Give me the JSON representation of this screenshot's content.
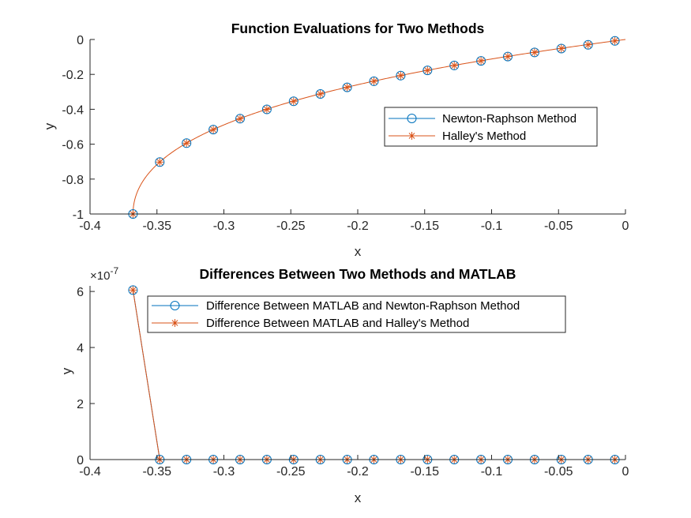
{
  "colors": {
    "series1": "#0072BD",
    "series2": "#D95319",
    "axis": "#262626",
    "text": "#262626"
  },
  "chart_data": [
    {
      "type": "line",
      "title": "Function Evaluations for Two Methods",
      "xlabel": "x",
      "ylabel": "y",
      "xlim": [
        -0.4,
        0
      ],
      "ylim": [
        -1,
        0
      ],
      "xticks": [
        -0.4,
        -0.35,
        -0.3,
        -0.25,
        -0.2,
        -0.15,
        -0.1,
        -0.05,
        0
      ],
      "xtick_labels": [
        "-0.4",
        "-0.35",
        "-0.3",
        "-0.25",
        "-0.2",
        "-0.15",
        "-0.1",
        "-0.05",
        "0"
      ],
      "yticks": [
        -1,
        -0.8,
        -0.6,
        -0.4,
        -0.2,
        0
      ],
      "ytick_labels": [
        "-1",
        "-0.8",
        "-0.6",
        "-0.4",
        "-0.2",
        "0"
      ],
      "legend_position": "upper-right",
      "grid": false,
      "x": [
        -0.3679,
        -0.3479,
        -0.3279,
        -0.3079,
        -0.2879,
        -0.2679,
        -0.2479,
        -0.2279,
        -0.2079,
        -0.1879,
        -0.1679,
        -0.1479,
        -0.1279,
        -0.1079,
        -0.0879,
        -0.0679,
        -0.0479,
        -0.0279,
        -0.0079
      ],
      "series": [
        {
          "name": "Newton-Raphson Method",
          "marker": "circle",
          "color": "#0072BD",
          "values": [
            -1.0,
            -0.7026,
            -0.5941,
            -0.5165,
            -0.4539,
            -0.4007,
            -0.3541,
            -0.3123,
            -0.2743,
            -0.2394,
            -0.2071,
            -0.1771,
            -0.149,
            -0.1226,
            -0.0977,
            -0.0741,
            -0.0518,
            -0.0303,
            -0.008
          ]
        },
        {
          "name": "Halley's Method",
          "marker": "asterisk",
          "color": "#D95319",
          "values": [
            -1.0,
            -0.7026,
            -0.5941,
            -0.5165,
            -0.4539,
            -0.4007,
            -0.3541,
            -0.3123,
            -0.2743,
            -0.2394,
            -0.2071,
            -0.1771,
            -0.149,
            -0.1226,
            -0.0977,
            -0.0741,
            -0.0518,
            -0.0303,
            -0.008
          ]
        }
      ]
    },
    {
      "type": "line",
      "title": "Differences Between Two Methods and MATLAB",
      "xlabel": "x",
      "ylabel": "y",
      "y_exponent_base": "×10",
      "y_exponent_power": "-7",
      "xlim": [
        -0.4,
        0
      ],
      "ylim": [
        0,
        6.2
      ],
      "xticks": [
        -0.4,
        -0.35,
        -0.3,
        -0.25,
        -0.2,
        -0.15,
        -0.1,
        -0.05,
        0
      ],
      "xtick_labels": [
        "-0.4",
        "-0.35",
        "-0.3",
        "-0.25",
        "-0.2",
        "-0.15",
        "-0.1",
        "-0.05",
        "0"
      ],
      "yticks": [
        0,
        2,
        4,
        6
      ],
      "ytick_labels": [
        "0",
        "2",
        "4",
        "6"
      ],
      "legend_position": "top",
      "grid": false,
      "x": [
        -0.3679,
        -0.3479,
        -0.3279,
        -0.3079,
        -0.2879,
        -0.2679,
        -0.2479,
        -0.2279,
        -0.2079,
        -0.1879,
        -0.1679,
        -0.1479,
        -0.1279,
        -0.1079,
        -0.0879,
        -0.0679,
        -0.0479,
        -0.0279,
        -0.0079
      ],
      "series": [
        {
          "name": "Difference Between MATLAB and Newton-Raphson Method",
          "marker": "circle",
          "color": "#0072BD",
          "values": [
            6.05,
            0,
            0,
            0,
            0,
            0,
            0,
            0,
            0,
            0,
            0,
            0,
            0,
            0,
            0,
            0,
            0,
            0,
            0
          ]
        },
        {
          "name": "Difference Between MATLAB and Halley's Method",
          "marker": "asterisk",
          "color": "#D95319",
          "values": [
            6.05,
            0,
            0,
            0,
            0,
            0,
            0,
            0,
            0,
            0,
            0,
            0,
            0,
            0,
            0,
            0,
            0,
            0,
            0
          ]
        }
      ]
    }
  ]
}
